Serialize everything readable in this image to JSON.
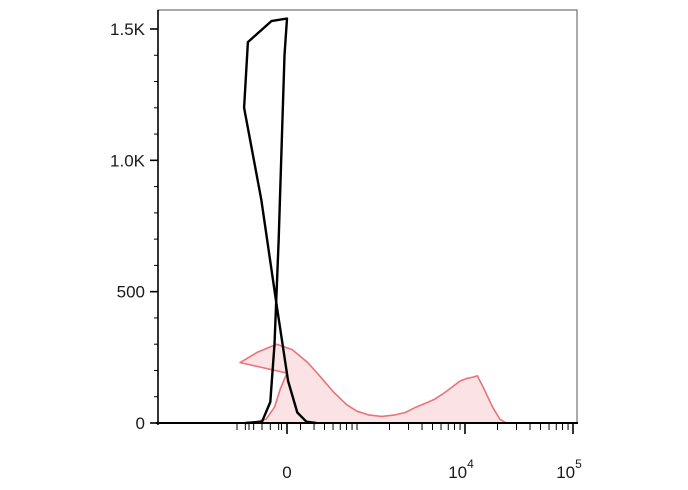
{
  "chart_data": {
    "type": "area",
    "title": "",
    "xlabel": "",
    "ylabel": "",
    "x_scale": "biexponential",
    "ylim": [
      0,
      1600
    ],
    "grid": false,
    "legend": "none",
    "y_ticks": [
      {
        "value": 0,
        "label": "0"
      },
      {
        "value": 500,
        "label": "500"
      },
      {
        "value": 1000,
        "label": "1.0K"
      },
      {
        "value": 1500,
        "label": "1.5K"
      }
    ],
    "x_ticks": [
      {
        "value": 0,
        "base": "0",
        "exp": ""
      },
      {
        "value": 10000,
        "base": "10",
        "exp": "4"
      },
      {
        "value": 100000,
        "base": "10",
        "exp": "5"
      }
    ],
    "series": [
      {
        "color": "#e8737d",
        "fill": "#fbe3e5",
        "filled": true,
        "points": [
          [
            -600,
            0
          ],
          [
            -400,
            2
          ],
          [
            -250,
            15
          ],
          [
            -150,
            60
          ],
          [
            -80,
            130
          ],
          [
            0,
            190
          ],
          [
            60,
            230
          ],
          [
            120,
            270
          ],
          [
            180,
            300
          ],
          [
            250,
            280
          ],
          [
            350,
            230
          ],
          [
            450,
            180
          ],
          [
            600,
            120
          ],
          [
            800,
            70
          ],
          [
            1000,
            45
          ],
          [
            1300,
            30
          ],
          [
            1700,
            25
          ],
          [
            2200,
            30
          ],
          [
            2800,
            40
          ],
          [
            3500,
            60
          ],
          [
            4300,
            75
          ],
          [
            5200,
            90
          ],
          [
            6200,
            110
          ],
          [
            7500,
            135
          ],
          [
            9000,
            160
          ],
          [
            10500,
            170
          ],
          [
            12000,
            175
          ],
          [
            13000,
            180
          ],
          [
            15000,
            130
          ],
          [
            18000,
            60
          ],
          [
            21000,
            15
          ],
          [
            24000,
            0
          ]
        ]
      },
      {
        "color": "#000000",
        "filled": false,
        "points": [
          [
            -500,
            0
          ],
          [
            -300,
            5
          ],
          [
            -200,
            80
          ],
          [
            -150,
            300
          ],
          [
            -100,
            700
          ],
          [
            -60,
            1100
          ],
          [
            -30,
            1400
          ],
          [
            0,
            1540
          ],
          [
            20,
            1530
          ],
          [
            50,
            1450
          ],
          [
            90,
            1200
          ],
          [
            130,
            850
          ],
          [
            180,
            450
          ],
          [
            230,
            160
          ],
          [
            280,
            40
          ],
          [
            340,
            5
          ],
          [
            420,
            0
          ]
        ]
      }
    ]
  }
}
